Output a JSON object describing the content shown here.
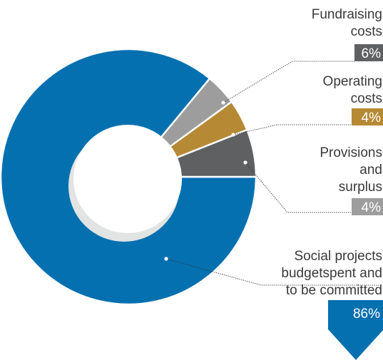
{
  "chart_data": {
    "type": "pie",
    "slices": [
      {
        "label": [
          "Social projects",
          "budgetspent and",
          "to be committed"
        ],
        "value": 86,
        "display": "86%",
        "color": "#0570b0"
      },
      {
        "label": [
          "Provisions",
          "and",
          "surplus"
        ],
        "value": 4,
        "display": "4%",
        "color": "#9d9d9d"
      },
      {
        "label": [
          "Operating",
          "costs"
        ],
        "value": 4,
        "display": "4%",
        "color": "#b68935"
      },
      {
        "label": [
          "Fundraising",
          "costs"
        ],
        "value": 6,
        "display": "6%",
        "color": "#5f6062"
      }
    ],
    "center_color": "#e2e3e3"
  }
}
